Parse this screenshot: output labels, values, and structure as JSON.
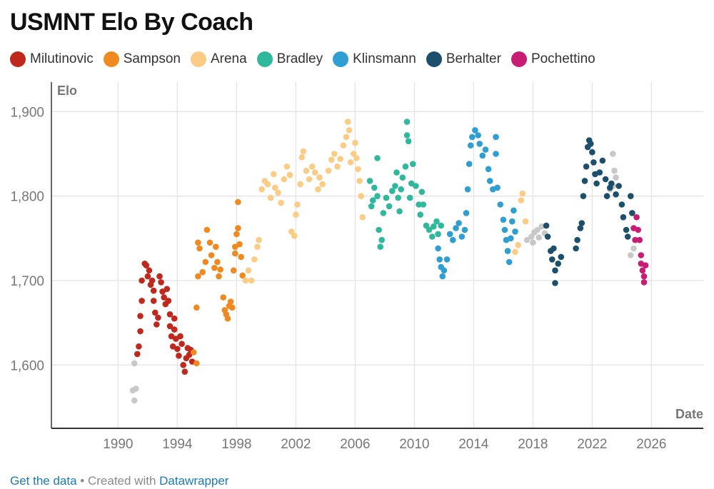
{
  "title": "USMNT Elo By Coach",
  "footer": {
    "data_link": "Get the data",
    "separator": " • Created with ",
    "credit_link": "Datawrapper"
  },
  "chart_data": {
    "type": "scatter",
    "title": "USMNT Elo By Coach",
    "xlabel": "Date",
    "ylabel": "Elo",
    "xlim": [
      1985.5,
      2029.5
    ],
    "ylim": [
      1525,
      1935
    ],
    "x_ticks": [
      1990,
      1994,
      1998,
      2002,
      2006,
      2010,
      2014,
      2018,
      2022,
      2026
    ],
    "y_ticks": [
      1600,
      1700,
      1800,
      1900
    ],
    "y_tick_labels": [
      "1,600",
      "1,700",
      "1,800",
      "1,900"
    ],
    "grid": true,
    "legend_position": "top-left",
    "series": [
      {
        "name": "",
        "color": "#c8c8c8",
        "points": [
          [
            1991.1,
            1602
          ],
          [
            1991.0,
            1570
          ],
          [
            1991.2,
            1572
          ],
          [
            1991.1,
            1558
          ],
          [
            2017.6,
            1748
          ],
          [
            2017.9,
            1752
          ],
          [
            2018.1,
            1757
          ],
          [
            2018.3,
            1760
          ],
          [
            2018.6,
            1764
          ],
          [
            2018.8,
            1756
          ],
          [
            2018.4,
            1751
          ],
          [
            2018.0,
            1745
          ],
          [
            2023.4,
            1850
          ],
          [
            2023.5,
            1830
          ],
          [
            2023.4,
            1812
          ],
          [
            2023.2,
            1808
          ],
          [
            2023.6,
            1822
          ],
          [
            2024.6,
            1730
          ],
          [
            2024.8,
            1738
          ]
        ]
      },
      {
        "name": "Milutinovic",
        "color": "#c0281e",
        "points": [
          [
            1991.3,
            1613
          ],
          [
            1991.4,
            1622
          ],
          [
            1991.5,
            1640
          ],
          [
            1991.5,
            1658
          ],
          [
            1991.6,
            1676
          ],
          [
            1991.6,
            1700
          ],
          [
            1991.8,
            1720
          ],
          [
            1991.9,
            1718
          ],
          [
            1992.1,
            1712
          ],
          [
            1992.0,
            1705
          ],
          [
            1992.2,
            1695
          ],
          [
            1992.3,
            1700
          ],
          [
            1992.4,
            1688
          ],
          [
            1992.4,
            1676
          ],
          [
            1992.5,
            1662
          ],
          [
            1992.6,
            1648
          ],
          [
            1992.7,
            1656
          ],
          [
            1992.8,
            1705
          ],
          [
            1992.9,
            1698
          ],
          [
            1993.0,
            1687
          ],
          [
            1993.1,
            1680
          ],
          [
            1993.2,
            1672
          ],
          [
            1993.3,
            1690
          ],
          [
            1993.4,
            1676
          ],
          [
            1993.5,
            1660
          ],
          [
            1993.5,
            1646
          ],
          [
            1993.6,
            1634
          ],
          [
            1993.7,
            1622
          ],
          [
            1993.8,
            1642
          ],
          [
            1993.8,
            1655
          ],
          [
            1993.9,
            1631
          ],
          [
            1994.0,
            1619
          ],
          [
            1994.1,
            1611
          ],
          [
            1994.2,
            1634
          ],
          [
            1994.3,
            1625
          ],
          [
            1994.4,
            1600
          ],
          [
            1994.5,
            1592
          ],
          [
            1994.6,
            1608
          ],
          [
            1994.7,
            1620
          ],
          [
            1994.8,
            1612
          ],
          [
            1994.9,
            1618
          ],
          [
            1995.0,
            1604
          ]
        ]
      },
      {
        "name": "Sampson",
        "color": "#f0891f",
        "points": [
          [
            1995.1,
            1615
          ],
          [
            1995.3,
            1602
          ],
          [
            1995.3,
            1668
          ],
          [
            1995.4,
            1705
          ],
          [
            1995.4,
            1745
          ],
          [
            1995.5,
            1738
          ],
          [
            1995.7,
            1710
          ],
          [
            1995.9,
            1722
          ],
          [
            1996.0,
            1760
          ],
          [
            1996.2,
            1745
          ],
          [
            1996.3,
            1730
          ],
          [
            1996.5,
            1715
          ],
          [
            1996.6,
            1740
          ],
          [
            1996.7,
            1722
          ],
          [
            1996.8,
            1705
          ],
          [
            1996.9,
            1713
          ],
          [
            1997.1,
            1680
          ],
          [
            1997.2,
            1665
          ],
          [
            1997.3,
            1660
          ],
          [
            1997.4,
            1655
          ],
          [
            1997.5,
            1670
          ],
          [
            1997.6,
            1675
          ],
          [
            1997.7,
            1668
          ],
          [
            1997.8,
            1712
          ],
          [
            1997.9,
            1740
          ],
          [
            1998.0,
            1755
          ],
          [
            1998.1,
            1762
          ],
          [
            1998.2,
            1743
          ],
          [
            1998.3,
            1728
          ],
          [
            1998.4,
            1706
          ],
          [
            1998.1,
            1793
          ],
          [
            1997.9,
            1732
          ]
        ]
      },
      {
        "name": "Arena",
        "color": "#fbcc86",
        "points": [
          [
            1998.6,
            1700
          ],
          [
            1998.8,
            1712
          ],
          [
            1999.0,
            1700
          ],
          [
            1999.2,
            1725
          ],
          [
            1999.4,
            1740
          ],
          [
            1999.5,
            1748
          ],
          [
            1999.7,
            1808
          ],
          [
            1999.9,
            1818
          ],
          [
            2000.1,
            1814
          ],
          [
            2000.3,
            1798
          ],
          [
            2000.5,
            1826
          ],
          [
            2000.6,
            1810
          ],
          [
            2000.8,
            1804
          ],
          [
            2001.0,
            1792
          ],
          [
            2001.2,
            1820
          ],
          [
            2001.4,
            1835
          ],
          [
            2001.6,
            1825
          ],
          [
            2001.7,
            1758
          ],
          [
            2001.9,
            1753
          ],
          [
            2002.0,
            1778
          ],
          [
            2002.1,
            1790
          ],
          [
            2002.3,
            1814
          ],
          [
            2002.4,
            1846
          ],
          [
            2002.5,
            1853
          ],
          [
            2002.7,
            1830
          ],
          [
            2002.9,
            1820
          ],
          [
            2003.1,
            1835
          ],
          [
            2003.3,
            1828
          ],
          [
            2003.5,
            1808
          ],
          [
            2003.6,
            1822
          ],
          [
            2003.8,
            1814
          ],
          [
            2004.2,
            1830
          ],
          [
            2004.4,
            1843
          ],
          [
            2004.6,
            1850
          ],
          [
            2004.8,
            1835
          ],
          [
            2005.0,
            1844
          ],
          [
            2005.2,
            1860
          ],
          [
            2005.4,
            1870
          ],
          [
            2005.5,
            1888
          ],
          [
            2005.6,
            1878
          ],
          [
            2005.7,
            1840
          ],
          [
            2005.9,
            1850
          ],
          [
            2006.0,
            1863
          ],
          [
            2006.1,
            1845
          ],
          [
            2006.2,
            1832
          ],
          [
            2006.3,
            1818
          ],
          [
            2006.4,
            1800
          ],
          [
            2006.5,
            1775
          ],
          [
            2017.3,
            1803
          ],
          [
            2017.2,
            1795
          ],
          [
            2017.5,
            1770
          ],
          [
            2017.0,
            1742
          ],
          [
            2016.8,
            1734
          ]
        ]
      },
      {
        "name": "Bradley",
        "color": "#2fb89b",
        "points": [
          [
            2007.0,
            1818
          ],
          [
            2007.1,
            1788
          ],
          [
            2007.2,
            1795
          ],
          [
            2007.3,
            1810
          ],
          [
            2007.5,
            1845
          ],
          [
            2007.5,
            1800
          ],
          [
            2007.6,
            1760
          ],
          [
            2007.7,
            1740
          ],
          [
            2007.8,
            1748
          ],
          [
            2007.9,
            1780
          ],
          [
            2008.1,
            1798
          ],
          [
            2008.3,
            1788
          ],
          [
            2008.5,
            1806
          ],
          [
            2008.7,
            1812
          ],
          [
            2008.8,
            1828
          ],
          [
            2008.9,
            1798
          ],
          [
            2009.0,
            1782
          ],
          [
            2009.1,
            1808
          ],
          [
            2009.2,
            1822
          ],
          [
            2009.4,
            1835
          ],
          [
            2009.5,
            1888
          ],
          [
            2009.5,
            1872
          ],
          [
            2009.6,
            1865
          ],
          [
            2009.7,
            1798
          ],
          [
            2009.8,
            1815
          ],
          [
            2009.9,
            1838
          ],
          [
            2010.1,
            1812
          ],
          [
            2010.3,
            1790
          ],
          [
            2010.4,
            1778
          ],
          [
            2010.5,
            1805
          ],
          [
            2010.6,
            1790
          ],
          [
            2010.8,
            1765
          ],
          [
            2011.0,
            1760
          ],
          [
            2011.2,
            1752
          ],
          [
            2011.3,
            1764
          ],
          [
            2011.5,
            1770
          ],
          [
            2011.6,
            1755
          ],
          [
            2011.8,
            1765
          ]
        ]
      },
      {
        "name": "Klinsmann",
        "color": "#2f9ed0",
        "points": [
          [
            2011.6,
            1738
          ],
          [
            2011.7,
            1725
          ],
          [
            2011.8,
            1716
          ],
          [
            2011.9,
            1705
          ],
          [
            2012.0,
            1712
          ],
          [
            2012.2,
            1725
          ],
          [
            2012.4,
            1755
          ],
          [
            2012.6,
            1748
          ],
          [
            2012.8,
            1762
          ],
          [
            2013.0,
            1768
          ],
          [
            2013.2,
            1752
          ],
          [
            2013.4,
            1760
          ],
          [
            2013.5,
            1780
          ],
          [
            2013.6,
            1808
          ],
          [
            2013.7,
            1838
          ],
          [
            2013.8,
            1860
          ],
          [
            2013.9,
            1870
          ],
          [
            2014.1,
            1878
          ],
          [
            2014.3,
            1872
          ],
          [
            2014.4,
            1862
          ],
          [
            2014.6,
            1848
          ],
          [
            2014.8,
            1855
          ],
          [
            2015.0,
            1832
          ],
          [
            2015.1,
            1818
          ],
          [
            2015.3,
            1808
          ],
          [
            2015.5,
            1870
          ],
          [
            2015.5,
            1850
          ],
          [
            2015.6,
            1810
          ],
          [
            2015.8,
            1790
          ],
          [
            2016.0,
            1772
          ],
          [
            2016.1,
            1760
          ],
          [
            2016.2,
            1748
          ],
          [
            2016.3,
            1735
          ],
          [
            2016.4,
            1722
          ],
          [
            2016.5,
            1750
          ],
          [
            2016.6,
            1770
          ],
          [
            2016.7,
            1783
          ],
          [
            2016.8,
            1758
          ]
        ]
      },
      {
        "name": "Berhalter",
        "color": "#1c4f6b",
        "points": [
          [
            2018.9,
            1765
          ],
          [
            2019.0,
            1752
          ],
          [
            2019.2,
            1735
          ],
          [
            2019.3,
            1725
          ],
          [
            2019.4,
            1738
          ],
          [
            2019.5,
            1712
          ],
          [
            2019.5,
            1697
          ],
          [
            2019.7,
            1720
          ],
          [
            2019.9,
            1728
          ],
          [
            2020.9,
            1738
          ],
          [
            2021.0,
            1748
          ],
          [
            2021.2,
            1762
          ],
          [
            2021.3,
            1768
          ],
          [
            2021.4,
            1800
          ],
          [
            2021.5,
            1818
          ],
          [
            2021.6,
            1835
          ],
          [
            2021.7,
            1858
          ],
          [
            2021.8,
            1866
          ],
          [
            2021.9,
            1862
          ],
          [
            2022.0,
            1852
          ],
          [
            2022.1,
            1840
          ],
          [
            2022.2,
            1826
          ],
          [
            2022.3,
            1815
          ],
          [
            2022.5,
            1828
          ],
          [
            2022.7,
            1842
          ],
          [
            2022.9,
            1820
          ],
          [
            2023.0,
            1800
          ],
          [
            2023.2,
            1810
          ],
          [
            2023.3,
            1815
          ],
          [
            2023.6,
            1802
          ],
          [
            2023.8,
            1812
          ],
          [
            2024.0,
            1790
          ],
          [
            2024.1,
            1775
          ],
          [
            2024.3,
            1760
          ],
          [
            2024.4,
            1752
          ],
          [
            2024.6,
            1800
          ],
          [
            2024.7,
            1780
          ]
        ]
      },
      {
        "name": "Pochettino",
        "color": "#c81d74",
        "points": [
          [
            2024.8,
            1762
          ],
          [
            2024.9,
            1748
          ],
          [
            2025.0,
            1775
          ],
          [
            2025.1,
            1760
          ],
          [
            2025.2,
            1748
          ],
          [
            2025.3,
            1730
          ],
          [
            2025.3,
            1720
          ],
          [
            2025.4,
            1712
          ],
          [
            2025.5,
            1705
          ],
          [
            2025.5,
            1698
          ],
          [
            2025.6,
            1718
          ]
        ]
      }
    ]
  }
}
